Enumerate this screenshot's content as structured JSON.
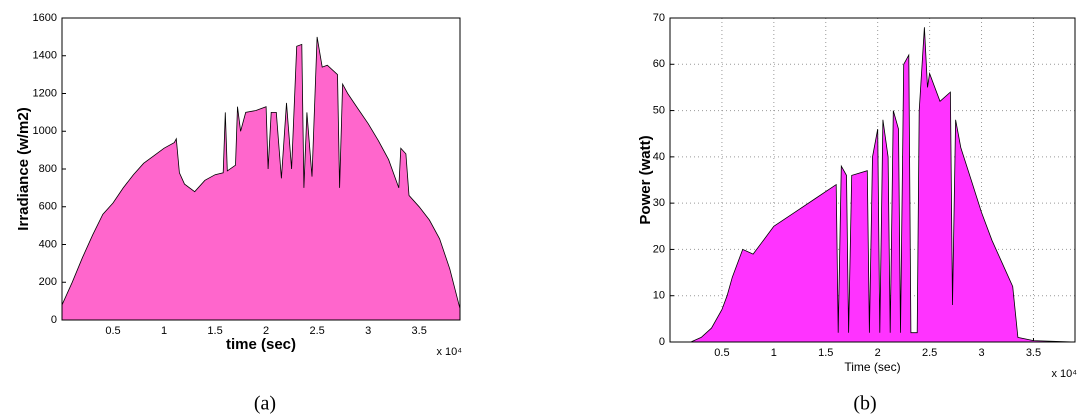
{
  "chart_data": [
    {
      "type": "area",
      "ylabel": "Irradiance (w/m2)",
      "xlabel": "time (sec)",
      "x_multiplier": "x 10⁴",
      "caption": "(a)",
      "color": "#ff66cc",
      "grid": false,
      "xlim": [
        0,
        3.9
      ],
      "xticks": [
        0.5,
        1,
        1.5,
        2,
        2.5,
        3,
        3.5
      ],
      "ylim": [
        0,
        1600
      ],
      "yticks": [
        0,
        200,
        400,
        600,
        800,
        1000,
        1200,
        1400,
        1600
      ],
      "x": [
        0,
        0.1,
        0.2,
        0.3,
        0.4,
        0.5,
        0.6,
        0.7,
        0.8,
        0.9,
        1.0,
        1.1,
        1.12,
        1.15,
        1.2,
        1.3,
        1.4,
        1.5,
        1.58,
        1.6,
        1.62,
        1.7,
        1.72,
        1.75,
        1.8,
        1.9,
        2.0,
        2.02,
        2.05,
        2.1,
        2.15,
        2.2,
        2.25,
        2.3,
        2.35,
        2.37,
        2.4,
        2.45,
        2.5,
        2.55,
        2.6,
        2.7,
        2.72,
        2.75,
        2.8,
        2.9,
        3.0,
        3.1,
        3.2,
        3.3,
        3.32,
        3.37,
        3.4,
        3.5,
        3.6,
        3.7,
        3.8,
        3.9
      ],
      "values": [
        80,
        200,
        330,
        450,
        560,
        620,
        700,
        770,
        830,
        870,
        910,
        940,
        960,
        780,
        720,
        680,
        740,
        770,
        780,
        1100,
        790,
        820,
        1130,
        1000,
        1100,
        1110,
        1130,
        800,
        1100,
        1100,
        750,
        1150,
        800,
        1450,
        1460,
        700,
        1100,
        760,
        1500,
        1340,
        1350,
        1300,
        700,
        1250,
        1200,
        1120,
        1040,
        950,
        850,
        700,
        910,
        880,
        660,
        600,
        530,
        430,
        270,
        60
      ]
    },
    {
      "type": "area",
      "ylabel": "Power (watt)",
      "xlabel": "Time (sec)",
      "x_multiplier": "x 10⁴",
      "caption": "(b)",
      "color": "#ff33ff",
      "grid": true,
      "xlim": [
        0,
        3.9
      ],
      "xticks": [
        0.5,
        1,
        1.5,
        2,
        2.5,
        3,
        3.5
      ],
      "ylim": [
        0,
        70
      ],
      "yticks": [
        0,
        10,
        20,
        30,
        40,
        50,
        60,
        70
      ],
      "x": [
        0,
        0.2,
        0.3,
        0.4,
        0.5,
        0.55,
        0.6,
        0.7,
        0.8,
        0.9,
        1.0,
        1.2,
        1.4,
        1.6,
        1.62,
        1.65,
        1.7,
        1.72,
        1.75,
        1.9,
        1.92,
        1.95,
        2.0,
        2.02,
        2.05,
        2.1,
        2.12,
        2.15,
        2.2,
        2.22,
        2.25,
        2.3,
        2.32,
        2.38,
        2.4,
        2.45,
        2.48,
        2.5,
        2.6,
        2.7,
        2.72,
        2.75,
        2.8,
        2.9,
        3.0,
        3.1,
        3.2,
        3.3,
        3.35,
        3.5,
        3.9
      ],
      "values": [
        0,
        0,
        1,
        3,
        7,
        10,
        14,
        20,
        19,
        22,
        25,
        28,
        31,
        34,
        2,
        38,
        36,
        2,
        36,
        37,
        2,
        40,
        46,
        2,
        48,
        40,
        2,
        50,
        46,
        2,
        60,
        62,
        2,
        2,
        50,
        68,
        55,
        58,
        52,
        54,
        8,
        48,
        42,
        35,
        28,
        22,
        17,
        12,
        1,
        0.3,
        0
      ]
    }
  ]
}
